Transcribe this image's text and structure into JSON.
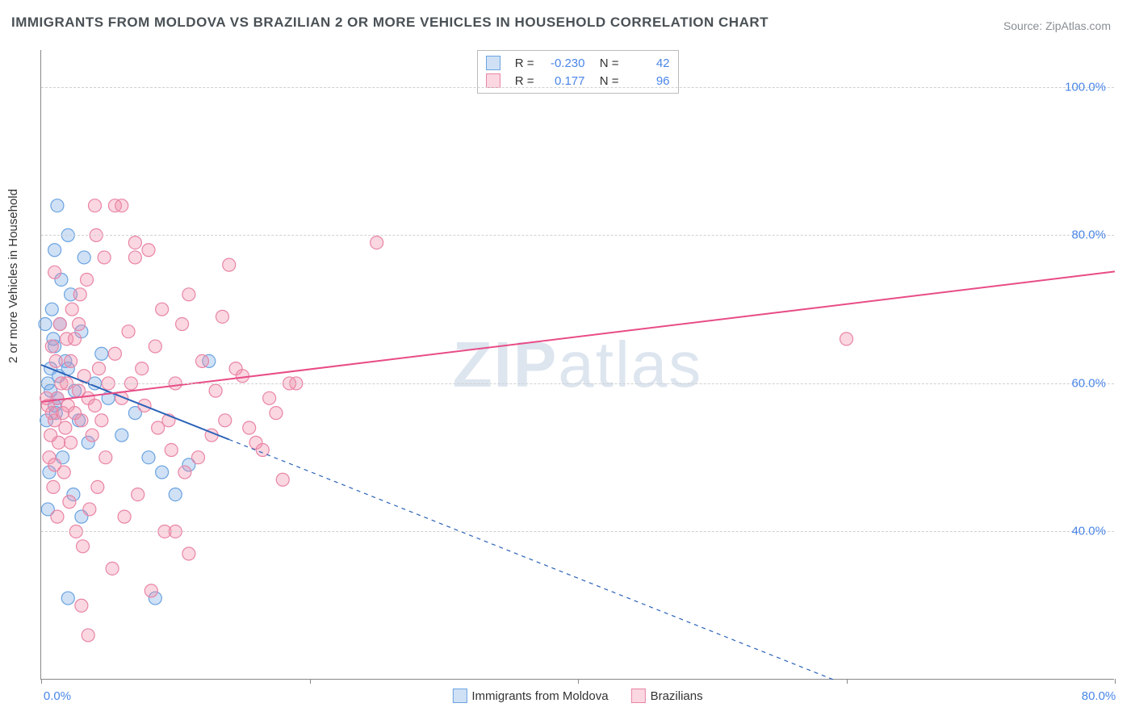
{
  "title": "IMMIGRANTS FROM MOLDOVA VS BRAZILIAN 2 OR MORE VEHICLES IN HOUSEHOLD CORRELATION CHART",
  "source": "Source: ZipAtlas.com",
  "watermark_prefix": "ZIP",
  "watermark_suffix": "atlas",
  "chart": {
    "type": "scatter",
    "ylabel": "2 or more Vehicles in Household",
    "xlim": [
      0,
      80
    ],
    "ylim": [
      20,
      105
    ],
    "xticks": [
      0,
      20,
      40,
      60,
      80
    ],
    "xtick_labels": [
      "0.0%",
      "",
      "",
      "",
      "80.0%"
    ],
    "yticks": [
      40,
      60,
      80,
      100
    ],
    "ytick_labels": [
      "40.0%",
      "60.0%",
      "80.0%",
      "100.0%"
    ],
    "grid_color": "#d0d0d0",
    "background_color": "#ffffff",
    "axis_color": "#888888",
    "tick_label_color": "#4a86e8",
    "marker_radius": 8,
    "marker_stroke_width": 1.2,
    "trend_line_width": 2,
    "trend_dash_pattern": "5,5",
    "series": [
      {
        "name": "Immigrants from Moldova",
        "fill": "rgba(120,170,230,0.35)",
        "stroke": "#6aa3e0",
        "line_color": "#2a62b8",
        "R": "-0.230",
        "N": "42",
        "trend": {
          "solid_from_x": 0,
          "solid_to_x": 14,
          "y_at_x0": 62.5,
          "slope": -0.72
        },
        "points": [
          [
            0.7,
            62
          ],
          [
            0.5,
            60
          ],
          [
            1.0,
            65
          ],
          [
            1.2,
            58
          ],
          [
            0.4,
            55
          ],
          [
            1.8,
            63
          ],
          [
            2.2,
            72
          ],
          [
            2.5,
            59
          ],
          [
            3.0,
            67
          ],
          [
            1.0,
            78
          ],
          [
            1.5,
            74
          ],
          [
            0.8,
            70
          ],
          [
            0.6,
            48
          ],
          [
            2.8,
            55
          ],
          [
            3.5,
            52
          ],
          [
            4.0,
            60
          ],
          [
            1.2,
            84
          ],
          [
            2.0,
            80
          ],
          [
            0.3,
            68
          ],
          [
            0.9,
            66
          ],
          [
            1.1,
            56
          ],
          [
            1.6,
            50
          ],
          [
            2.4,
            45
          ],
          [
            3.2,
            77
          ],
          [
            4.5,
            64
          ],
          [
            5.0,
            58
          ],
          [
            6.0,
            53
          ],
          [
            7.0,
            56
          ],
          [
            8.0,
            50
          ],
          [
            9.0,
            48
          ],
          [
            10.0,
            45
          ],
          [
            11.0,
            49
          ],
          [
            12.5,
            63
          ],
          [
            2.0,
            31
          ],
          [
            8.5,
            31
          ],
          [
            0.5,
            43
          ],
          [
            3.0,
            42
          ],
          [
            1.4,
            68
          ],
          [
            2.0,
            62
          ],
          [
            0.7,
            59
          ],
          [
            1.0,
            57
          ],
          [
            1.3,
            61
          ]
        ]
      },
      {
        "name": "Brazilians",
        "fill": "rgba(240,140,170,0.35)",
        "stroke": "#e985a5",
        "line_color": "#e84c86",
        "R": "0.177",
        "N": "96",
        "trend": {
          "solid_from_x": 0,
          "solid_to_x": 80,
          "y_at_x0": 57.5,
          "slope": 0.22
        },
        "points": [
          [
            0.5,
            57
          ],
          [
            0.8,
            56
          ],
          [
            1.0,
            55
          ],
          [
            1.2,
            58
          ],
          [
            1.5,
            60
          ],
          [
            1.8,
            54
          ],
          [
            2.0,
            57
          ],
          [
            2.2,
            52
          ],
          [
            2.5,
            56
          ],
          [
            2.8,
            59
          ],
          [
            3.0,
            55
          ],
          [
            3.2,
            61
          ],
          [
            3.5,
            58
          ],
          [
            3.8,
            53
          ],
          [
            4.0,
            57
          ],
          [
            4.3,
            62
          ],
          [
            4.5,
            55
          ],
          [
            5.0,
            60
          ],
          [
            5.5,
            64
          ],
          [
            6.0,
            58
          ],
          [
            6.5,
            67
          ],
          [
            7.0,
            77
          ],
          [
            7.5,
            62
          ],
          [
            8.0,
            78
          ],
          [
            8.5,
            65
          ],
          [
            9.0,
            70
          ],
          [
            9.5,
            55
          ],
          [
            10.0,
            60
          ],
          [
            10.5,
            68
          ],
          [
            11.0,
            72
          ],
          [
            12.0,
            63
          ],
          [
            13.0,
            59
          ],
          [
            14.0,
            76
          ],
          [
            15.0,
            61
          ],
          [
            16.0,
            52
          ],
          [
            17.0,
            58
          ],
          [
            18.0,
            47
          ],
          [
            19.0,
            60
          ],
          [
            14.5,
            62
          ],
          [
            13.5,
            69
          ],
          [
            5.5,
            84
          ],
          [
            6.0,
            84
          ],
          [
            0.8,
            65
          ],
          [
            1.1,
            63
          ],
          [
            1.4,
            68
          ],
          [
            1.7,
            48
          ],
          [
            2.1,
            44
          ],
          [
            2.6,
            40
          ],
          [
            3.1,
            38
          ],
          [
            3.6,
            43
          ],
          [
            4.2,
            46
          ],
          [
            4.8,
            50
          ],
          [
            5.3,
            35
          ],
          [
            6.2,
            42
          ],
          [
            7.2,
            45
          ],
          [
            8.2,
            32
          ],
          [
            9.2,
            40
          ],
          [
            1.9,
            66
          ],
          [
            2.3,
            70
          ],
          [
            2.9,
            72
          ],
          [
            3.4,
            74
          ],
          [
            25.0,
            79
          ],
          [
            4.1,
            80
          ],
          [
            4.7,
            77
          ],
          [
            6.7,
            60
          ],
          [
            7.7,
            57
          ],
          [
            8.7,
            54
          ],
          [
            9.7,
            51
          ],
          [
            10.7,
            48
          ],
          [
            11.7,
            50
          ],
          [
            12.7,
            53
          ],
          [
            13.7,
            55
          ],
          [
            15.5,
            54
          ],
          [
            16.5,
            51
          ],
          [
            17.5,
            56
          ],
          [
            18.5,
            60
          ],
          [
            0.6,
            50
          ],
          [
            0.9,
            46
          ],
          [
            1.2,
            42
          ],
          [
            3.0,
            30
          ],
          [
            3.5,
            26
          ],
          [
            0.4,
            58
          ],
          [
            0.7,
            53
          ],
          [
            1.0,
            49
          ],
          [
            1.3,
            52
          ],
          [
            1.6,
            56
          ],
          [
            1.9,
            60
          ],
          [
            2.2,
            63
          ],
          [
            2.5,
            66
          ],
          [
            2.8,
            68
          ],
          [
            60.0,
            66
          ],
          [
            10.0,
            40
          ],
          [
            11.0,
            37
          ],
          [
            7.0,
            79
          ],
          [
            4.0,
            84
          ],
          [
            1.0,
            75
          ]
        ]
      }
    ]
  }
}
